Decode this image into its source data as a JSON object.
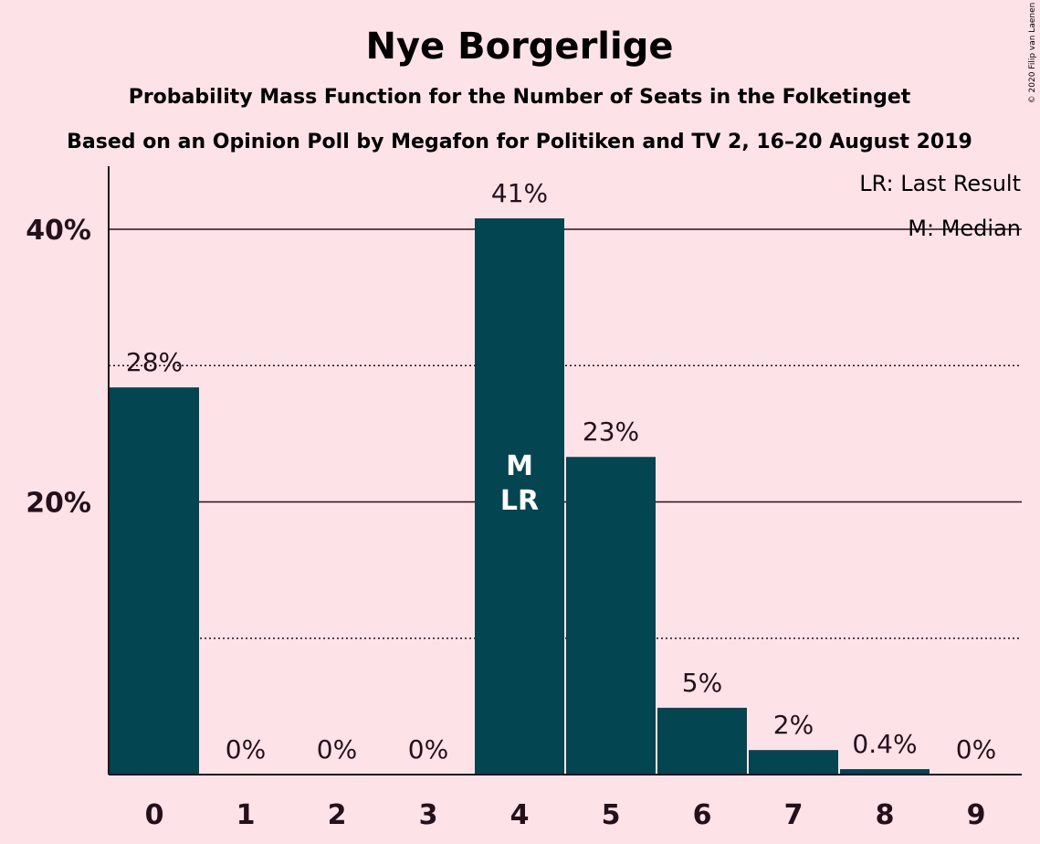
{
  "chart_data": {
    "type": "bar",
    "title": "Nye Borgerlige",
    "subtitle": "Probability Mass Function for the Number of Seats in the Folketinget",
    "subtitle2": "Based on an Opinion Poll by Megafon for Politiken and TV 2, 16–20 August 2019",
    "copyright": "© 2020 Filip van Laenen",
    "categories": [
      "0",
      "1",
      "2",
      "3",
      "4",
      "5",
      "6",
      "7",
      "8",
      "9"
    ],
    "values": [
      28.4,
      0,
      0,
      0,
      40.8,
      23.3,
      4.9,
      1.8,
      0.4,
      0
    ],
    "data_labels": [
      "28%",
      "0%",
      "0%",
      "0%",
      "41%",
      "23%",
      "5%",
      "2%",
      "0.4%",
      "0%"
    ],
    "ylim": [
      0,
      45
    ],
    "ytick_values": [
      20,
      40
    ],
    "ytick_labels": [
      "20%",
      "40%"
    ],
    "minor_gridlines": [
      10,
      30
    ],
    "median_category": "4",
    "last_result_category": "4",
    "bar_markers": [
      "M",
      "LR"
    ],
    "legend": [
      "LR: Last Result",
      "M: Median"
    ],
    "legend_position": "top-right",
    "bar_color": "#034652",
    "background_color": "#fde2e7"
  }
}
